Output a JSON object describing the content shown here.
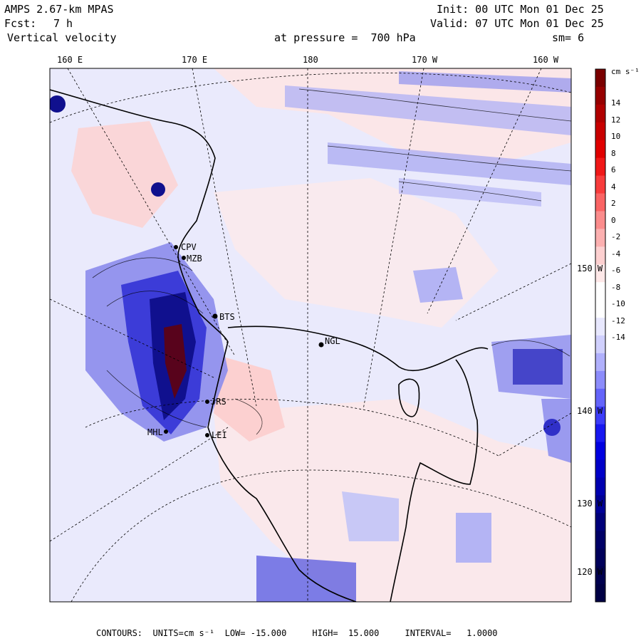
{
  "header": {
    "model": "AMPS 2.67-km MPAS",
    "init": "Init: 00 UTC Mon 01 Dec 25",
    "fcst_label": "Fcst:",
    "fcst_value": "7 h",
    "valid": "Valid: 07 UTC Mon 01 Dec 25",
    "field": "Vertical velocity",
    "pressure": "at pressure =  700 hPa",
    "smoothing": "sm= 6"
  },
  "lon_labels_top": [
    "160 E",
    "170 E",
    "180",
    "170 W",
    "160 W"
  ],
  "lat_labels_right": [
    "150 W",
    "140 W",
    "130 W",
    "120 W"
  ],
  "stations": [
    "CPV",
    "MZB",
    "BTS",
    "NGL",
    "LEI",
    "MHL",
    "JRS"
  ],
  "colorbar": {
    "units": "cm s⁻¹",
    "ticks": [
      "14",
      "12",
      "10",
      "8",
      "6",
      "4",
      "2",
      "0",
      "-2",
      "-4",
      "-6",
      "-8",
      "-10",
      "-12",
      "-14"
    ],
    "colors": [
      "#7a0000",
      "#960000",
      "#b00000",
      "#c80000",
      "#e00000",
      "#f01818",
      "#f83c3c",
      "#fa6464",
      "#fb8c8c",
      "#fcb0b0",
      "#fdd0d0",
      "#fee8e8",
      "#ffffff",
      "#ffffff",
      "#e8e8fe",
      "#d0d0fd",
      "#b0b0fc",
      "#8c8cfb",
      "#6464fa",
      "#3c3cf8",
      "#1818f0",
      "#0000e0",
      "#0000c8",
      "#0000b0",
      "#000096",
      "#00007a",
      "#000066",
      "#00005a",
      "#00004e",
      "#000044"
    ]
  },
  "footer": {
    "contours": "CONTOURS:  UNITS=cm s⁻¹  LOW= -15.000     HIGH=  15.000     INTERVAL=   1.0000"
  },
  "colors": {
    "positive_light": "#fde4e4",
    "negative_light": "#e6e6fb",
    "negative_mid": "#9a9aee",
    "negative_dark": "#1a1ab8"
  }
}
